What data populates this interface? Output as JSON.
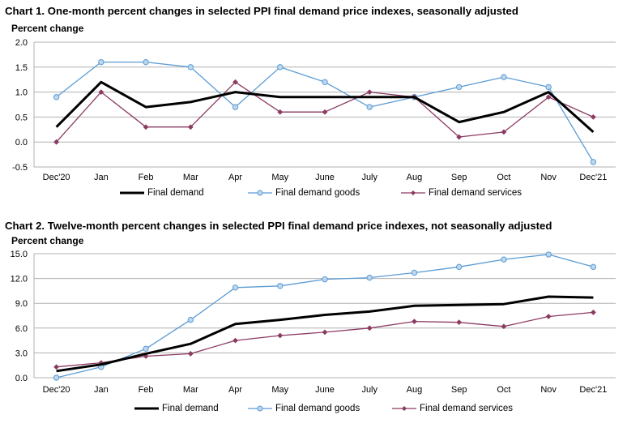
{
  "charts": [
    {
      "title": "Chart 1. One-month percent changes in selected PPI final demand price indexes, seasonally adjusted",
      "ylabel": "Percent change"
    },
    {
      "title": "Chart 2. Twelve-month percent changes in selected PPI final demand price indexes, not seasonally adjusted",
      "ylabel": "Percent change"
    }
  ],
  "colors": {
    "final_demand": "#000000",
    "goods": "#5b9bd5",
    "goods_fill": "#bdd7ee",
    "services": "#8b3a62",
    "grid": "#b0b0b0"
  },
  "legend": {
    "final_demand": "Final demand",
    "goods": "Final demand goods",
    "services": "Final demand services"
  },
  "chart_data": [
    {
      "type": "line",
      "title": "Chart 1. One-month percent changes in selected PPI final demand price indexes, seasonally adjusted",
      "ylabel": "Percent change",
      "categories": [
        "Dec'20",
        "Jan",
        "Feb",
        "Mar",
        "Apr",
        "May",
        "June",
        "July",
        "Aug",
        "Sep",
        "Oct",
        "Nov",
        "Dec'21"
      ],
      "ylim": [
        -0.5,
        2.0
      ],
      "yticks": [
        "2.0",
        "1.5",
        "1.0",
        "0.5",
        "0.0",
        "-0.5"
      ],
      "ytick_values": [
        2.0,
        1.5,
        1.0,
        0.5,
        0.0,
        -0.5
      ],
      "grid": true,
      "legend_position": "bottom",
      "series": [
        {
          "name": "Final demand",
          "values": [
            0.3,
            1.2,
            0.7,
            0.8,
            1.0,
            0.9,
            0.9,
            0.9,
            0.9,
            0.4,
            0.6,
            1.0,
            0.2
          ]
        },
        {
          "name": "Final demand goods",
          "values": [
            0.9,
            1.6,
            1.6,
            1.5,
            0.7,
            1.5,
            1.2,
            0.7,
            0.9,
            1.1,
            1.3,
            1.1,
            -0.4
          ]
        },
        {
          "name": "Final demand services",
          "values": [
            0.0,
            1.0,
            0.3,
            0.3,
            1.2,
            0.6,
            0.6,
            1.0,
            0.9,
            0.1,
            0.2,
            0.9,
            0.5
          ]
        }
      ]
    },
    {
      "type": "line",
      "title": "Chart 2. Twelve-month percent changes in selected PPI final demand price indexes, not seasonally adjusted",
      "ylabel": "Percent change",
      "categories": [
        "Dec'20",
        "Jan",
        "Feb",
        "Mar",
        "Apr",
        "May",
        "June",
        "July",
        "Aug",
        "Sep",
        "Oct",
        "Nov",
        "Dec'21"
      ],
      "ylim": [
        0.0,
        15.0
      ],
      "yticks": [
        "15.0",
        "12.0",
        "9.0",
        "6.0",
        "3.0",
        "0.0"
      ],
      "ytick_values": [
        15.0,
        12.0,
        9.0,
        6.0,
        3.0,
        0.0
      ],
      "grid": true,
      "legend_position": "bottom",
      "series": [
        {
          "name": "Final demand",
          "values": [
            0.8,
            1.6,
            2.9,
            4.1,
            6.5,
            7.0,
            7.6,
            8.0,
            8.7,
            8.8,
            8.9,
            9.8,
            9.7
          ]
        },
        {
          "name": "Final demand goods",
          "values": [
            0.0,
            1.3,
            3.5,
            7.0,
            10.9,
            11.1,
            11.9,
            12.1,
            12.7,
            13.4,
            14.3,
            14.9,
            13.4
          ]
        },
        {
          "name": "Final demand services",
          "values": [
            1.3,
            1.8,
            2.6,
            2.9,
            4.5,
            5.1,
            5.5,
            6.0,
            6.8,
            6.7,
            6.2,
            7.4,
            7.9
          ]
        }
      ]
    }
  ]
}
